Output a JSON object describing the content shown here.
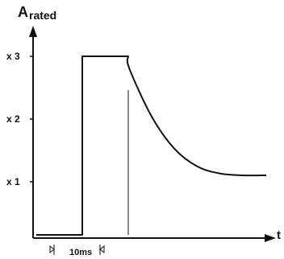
{
  "chart_data": {
    "type": "line",
    "ylabel": "A",
    "ylabel_sub": "rated",
    "xlabel": "t",
    "y_ticks": [
      "x 3",
      "x 2",
      "x 1"
    ],
    "ylim": [
      0,
      3
    ],
    "series": [
      {
        "points": [
          [
            0,
            0
          ],
          [
            1,
            0
          ],
          [
            1,
            3
          ],
          [
            2,
            3
          ],
          [
            2.02,
            2.8
          ],
          [
            2.5,
            2.0
          ],
          [
            3,
            1.45
          ],
          [
            3.5,
            1.15
          ],
          [
            4,
            1.03
          ],
          [
            4.5,
            1.0
          ],
          [
            5,
            1.0
          ]
        ]
      }
    ],
    "annotation": {
      "label": "10ms",
      "from_x": 1,
      "to_x": 2
    },
    "grid": false,
    "legend": "none"
  },
  "colors": {
    "line": "#111111",
    "background": "#ffffff"
  }
}
